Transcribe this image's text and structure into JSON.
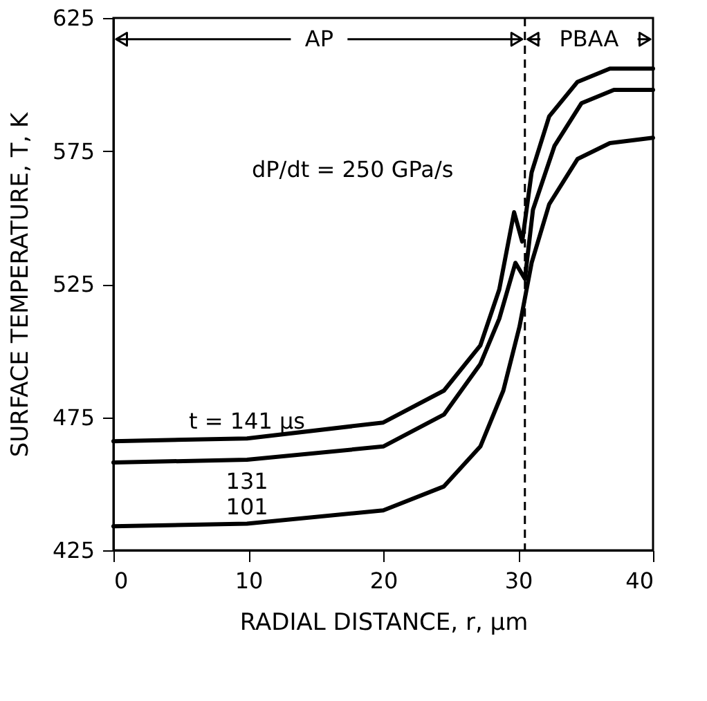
{
  "chart_data": {
    "type": "line",
    "xlabel": "RADIAL DISTANCE, r, μm",
    "ylabel": "SURFACE TEMPERATURE, T, K",
    "xlim": [
      0,
      40
    ],
    "xticks": [
      0,
      10,
      20,
      30,
      40
    ],
    "ylim": [
      425,
      625
    ],
    "yticks": [
      425,
      475,
      525,
      575,
      625
    ],
    "grid": false,
    "legend": false,
    "marker": "none",
    "line_style": "solid",
    "series": [
      {
        "name": "t = 141 μs",
        "color": "#000000",
        "x": [
          0,
          9.9,
          20,
          24.5,
          27.2,
          28.6,
          29.7,
          30.3,
          31,
          32.3,
          34.4,
          36.8,
          40
        ],
        "values": [
          466,
          467,
          473,
          485,
          502,
          523,
          552,
          541,
          567,
          588,
          601,
          606,
          606
        ]
      },
      {
        "name": "131",
        "color": "#000000",
        "x": [
          0,
          9.9,
          20,
          24.5,
          27.2,
          28.6,
          29.8,
          30.5,
          31.1,
          32.7,
          34.7,
          37.1,
          40
        ],
        "values": [
          458,
          459,
          464,
          476,
          495,
          512,
          533,
          527,
          553,
          577,
          593,
          598,
          598
        ]
      },
      {
        "name": "101",
        "color": "#000000",
        "x": [
          0,
          9.9,
          20,
          24.5,
          27.2,
          28.9,
          30.1,
          31,
          32.3,
          34.4,
          36.8,
          40
        ],
        "values": [
          434,
          435,
          440,
          449,
          464,
          485,
          509,
          533,
          555,
          572,
          578,
          580
        ]
      }
    ],
    "ref_lines": [
      {
        "axis": "x",
        "value": 30.5,
        "line_style": "dashed",
        "color": "#000000"
      }
    ],
    "annotations": [
      {
        "text": "AP",
        "x": 30.5,
        "y": 617
      },
      {
        "text": "PBAA",
        "x": 30.5,
        "y": 617
      },
      "dP/dt = 250 GPa/s"
    ]
  }
}
